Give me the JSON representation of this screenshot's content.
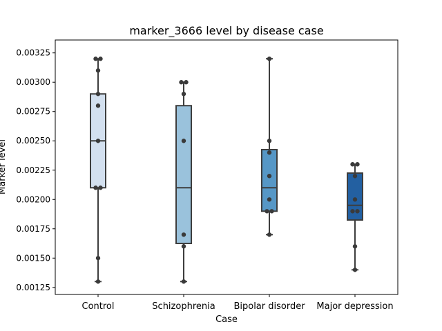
{
  "chart_data": {
    "type": "box",
    "title": "marker_3666 level by disease case",
    "xlabel": "Case",
    "ylabel": "Marker level",
    "ylim": [
      0.00119,
      0.00336
    ],
    "yticks": [
      "0.00125",
      "0.00150",
      "0.00175",
      "0.00200",
      "0.00225",
      "0.00250",
      "0.00275",
      "0.00300",
      "0.00325"
    ],
    "categories": [
      "Control",
      "Schizophrenia",
      "Bipolar disorder",
      "Major depression"
    ],
    "colors": [
      "#d3e0ef",
      "#9ac2dc",
      "#5697c6",
      "#2360a1"
    ],
    "boxes": [
      {
        "whisker_low": 0.0013,
        "q1": 0.0021,
        "median": 0.0025,
        "q3": 0.0029,
        "whisker_high": 0.0032
      },
      {
        "whisker_low": 0.0013,
        "q1": 0.001625,
        "median": 0.0021,
        "q3": 0.0028,
        "whisker_high": 0.003
      },
      {
        "whisker_low": 0.0017,
        "q1": 0.0019,
        "median": 0.0021,
        "q3": 0.002425,
        "whisker_high": 0.0032
      },
      {
        "whisker_low": 0.0014,
        "q1": 0.001825,
        "median": 0.00195,
        "q3": 0.002225,
        "whisker_high": 0.0023
      }
    ],
    "points": [
      [
        0.0032,
        0.0032,
        0.0031,
        0.0029,
        0.0028,
        0.0025,
        0.0021,
        0.0021,
        0.0015,
        0.0013
      ],
      [
        0.003,
        0.003,
        0.0029,
        0.0025,
        0.0017,
        0.0016,
        0.0013
      ],
      [
        0.0032,
        0.0025,
        0.0024,
        0.0022,
        0.002,
        0.0019,
        0.0019,
        0.0017
      ],
      [
        0.0023,
        0.0023,
        0.0022,
        0.002,
        0.0019,
        0.0019,
        0.0016,
        0.0014
      ]
    ]
  }
}
